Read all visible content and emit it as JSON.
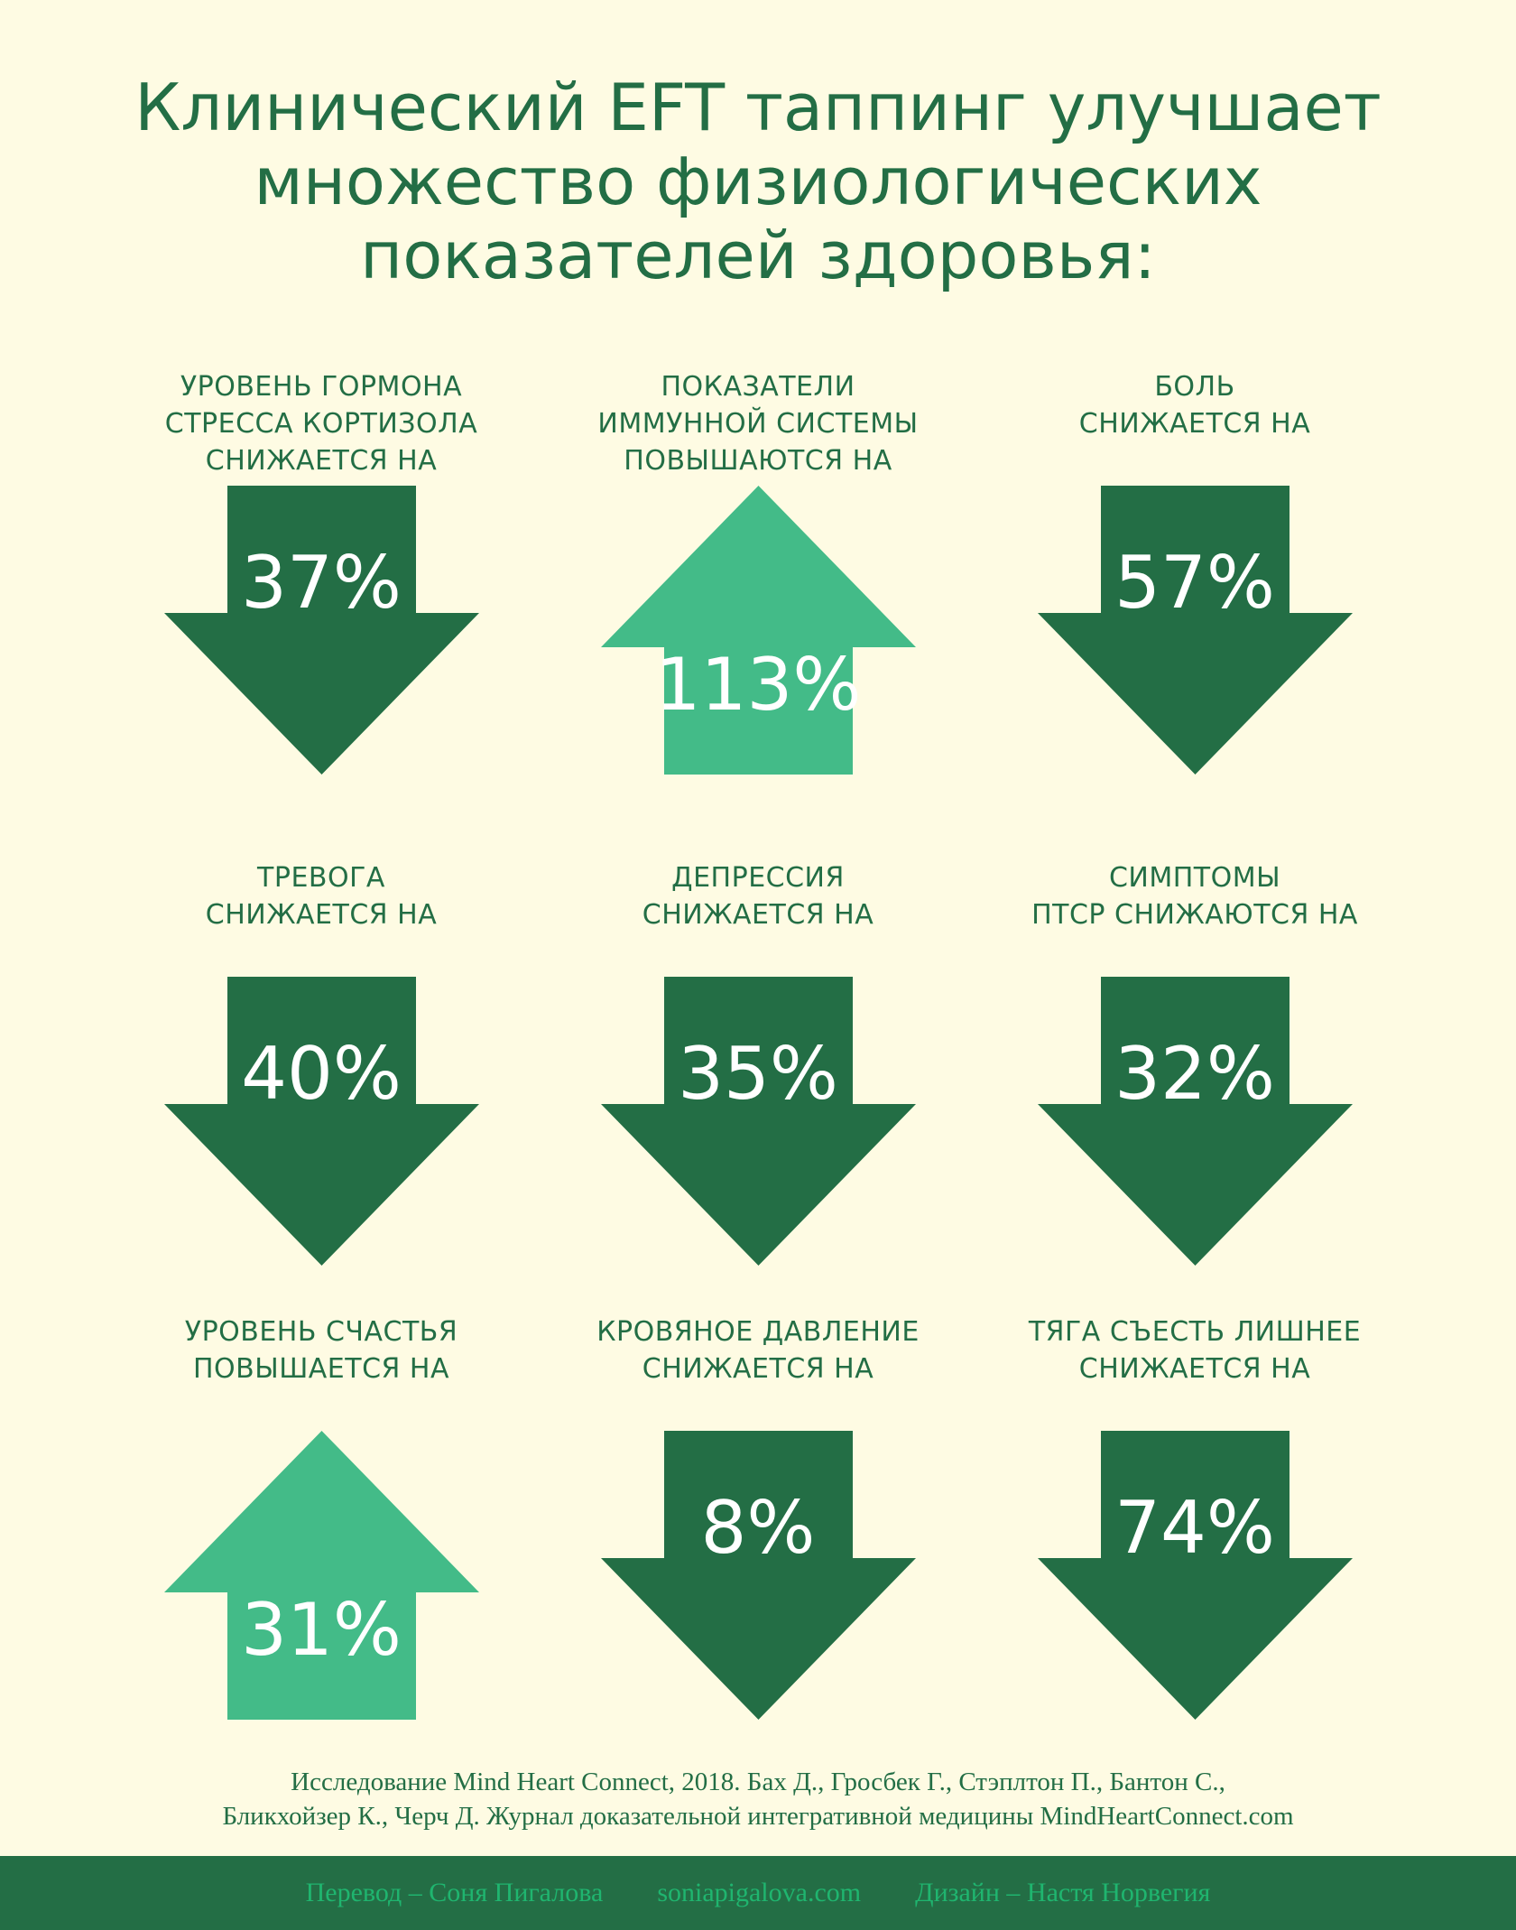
{
  "title": {
    "lines": [
      "Клинический EFT таппинг улучшает",
      "множество физиологических",
      "показателей здоровья:"
    ]
  },
  "colors": {
    "background": "#fefbe3",
    "dark_green": "#236e45",
    "light_green": "#43bb88",
    "footer_text": "#1fb56f"
  },
  "metrics": [
    {
      "label": [
        "УРОВЕНЬ ГОРМОНА",
        "СТРЕССА КОРТИЗОЛА",
        "СНИЖАЕТСЯ  НА"
      ],
      "value": "37%",
      "direction": "down"
    },
    {
      "label": [
        "ПОКАЗАТЕЛИ",
        "ИММУННОЙ СИСТЕМЫ",
        "ПОВЫШАЮТСЯ НА"
      ],
      "value": "113%",
      "direction": "up"
    },
    {
      "label": [
        "БОЛЬ",
        "СНИЖАЕТСЯ НА"
      ],
      "value": "57%",
      "direction": "down"
    },
    {
      "label": [
        "ТРЕВОГА",
        "СНИЖАЕТСЯ НА"
      ],
      "value": "40%",
      "direction": "down"
    },
    {
      "label": [
        "ДЕПРЕССИЯ",
        "СНИЖАЕТСЯ НА"
      ],
      "value": "35%",
      "direction": "down"
    },
    {
      "label": [
        "СИМПТОМЫ",
        "ПТСР СНИЖАЮТСЯ НА"
      ],
      "value": "32%",
      "direction": "down"
    },
    {
      "label": [
        "УРОВЕНЬ СЧАСТЬЯ",
        "ПОВЫШАЕТСЯ НА"
      ],
      "value": "31%",
      "direction": "up"
    },
    {
      "label": [
        "КРОВЯНОЕ ДАВЛЕНИЕ",
        "СНИЖАЕТСЯ НА"
      ],
      "value": "8%",
      "direction": "down"
    },
    {
      "label": [
        "ТЯГА СЪЕСТЬ ЛИШНЕЕ",
        "СНИЖАЕТСЯ НА"
      ],
      "value": "74%",
      "direction": "down"
    }
  ],
  "references": [
    "Исследование Mind Heart Connect, 2018. Бах Д., Гросбек Г., Стэплтон П., Бантон С.,",
    "Бликхойзер К., Черч Д. Журнал доказательной интегративной медицины MindHeartConnect.com"
  ],
  "footer": {
    "translation": "Перевод – Соня Пигалова",
    "website": "soniapigalova.com",
    "design": "Дизайн – Настя Норвегия"
  }
}
